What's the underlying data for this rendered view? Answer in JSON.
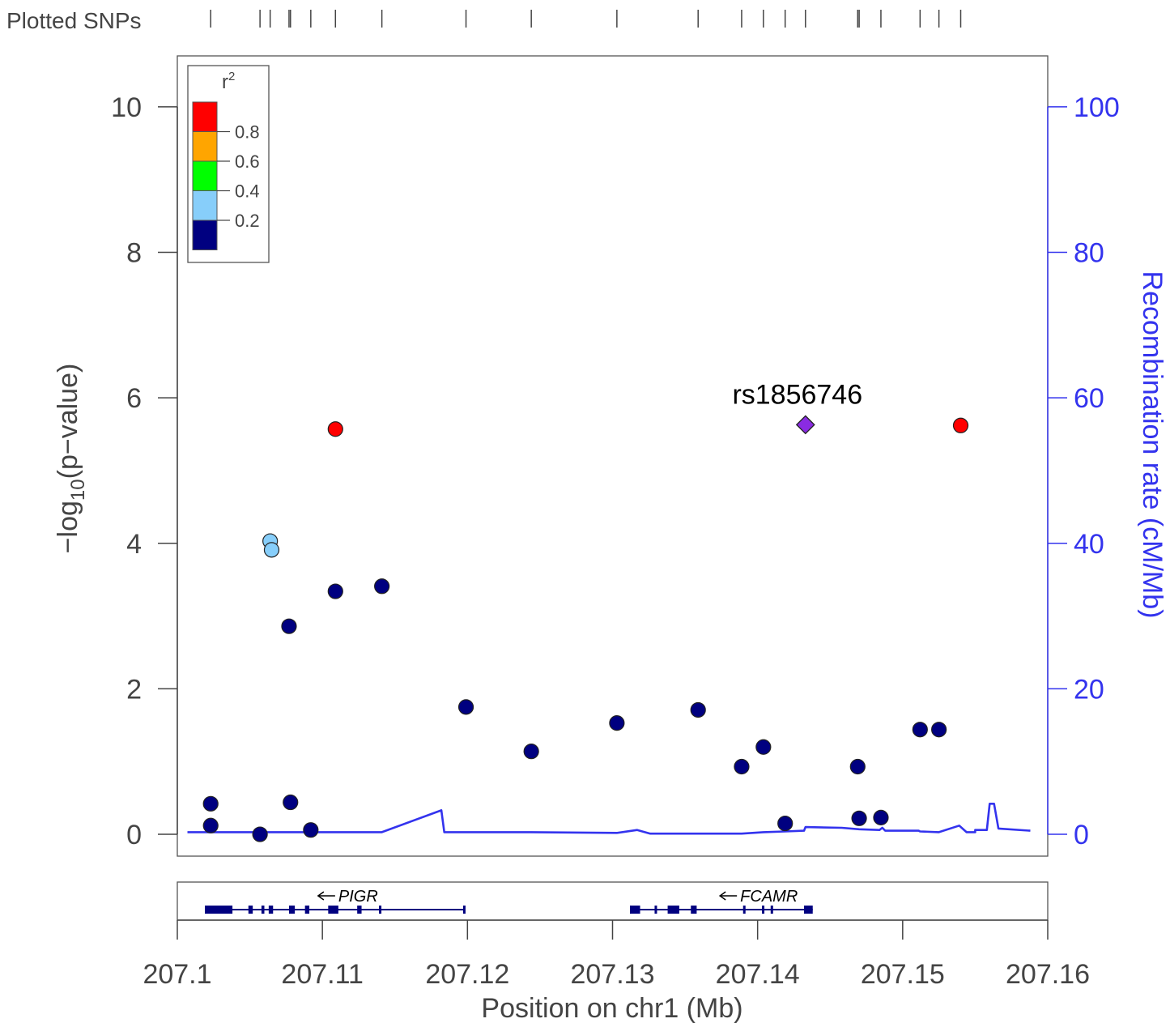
{
  "plotted_snps_label": "Plotted SNPs",
  "chart_data": {
    "type": "scatter",
    "xlabel": "Position on chr1 (Mb)",
    "ylabel_left": {
      "pre": "−log",
      "sub": "10",
      "post": "(p−value)"
    },
    "ylabel_right": "Recombination rate (cM/Mb)",
    "xlim": [
      207.1,
      207.16
    ],
    "ylim": [
      -0.3,
      10.7
    ],
    "x_ticks": [
      207.1,
      207.11,
      207.12,
      207.13,
      207.14,
      207.15,
      207.16
    ],
    "x_tick_labels": [
      "207.1",
      "207.11",
      "207.12",
      "207.13",
      "207.14",
      "207.15",
      "207.16"
    ],
    "y_ticks": [
      0,
      2,
      4,
      6,
      8,
      10
    ],
    "y_tick_labels": [
      "0",
      "2",
      "4",
      "6",
      "8",
      "10"
    ],
    "y2_ticks": [
      0,
      20,
      40,
      60,
      80,
      100
    ],
    "y2_tick_labels": [
      "0",
      "20",
      "40",
      "60",
      "80",
      "100"
    ],
    "y2_lim": [
      -3,
      107
    ],
    "legend": {
      "title": "r",
      "title_sup": "2",
      "placement": "top-left",
      "colors": [
        "#FF0000",
        "#FFA500",
        "#00FF00",
        "#87CEFA",
        "#000080"
      ],
      "labels": [
        "0.8",
        "0.6",
        "0.4",
        "0.2"
      ]
    },
    "colors": {
      "navy": "#000080",
      "lightblue": "#87CEFA",
      "red": "#FF0000",
      "lead": "#8A2BE2",
      "recomb": "#3333EE",
      "axis_text": "#444444"
    },
    "lead_snp": {
      "label": "rs1856746",
      "x": 207.1433,
      "y": 5.63
    },
    "points": [
      {
        "x": 207.1023,
        "y": 0.42,
        "r2": "navy"
      },
      {
        "x": 207.1023,
        "y": 0.12,
        "r2": "navy"
      },
      {
        "x": 207.1057,
        "y": 0.0,
        "r2": "navy"
      },
      {
        "x": 207.1064,
        "y": 4.03,
        "r2": "lightblue"
      },
      {
        "x": 207.1065,
        "y": 3.91,
        "r2": "lightblue"
      },
      {
        "x": 207.1077,
        "y": 2.86,
        "r2": "navy"
      },
      {
        "x": 207.1078,
        "y": 0.44,
        "r2": "navy"
      },
      {
        "x": 207.1092,
        "y": 0.06,
        "r2": "navy"
      },
      {
        "x": 207.1109,
        "y": 3.34,
        "r2": "navy"
      },
      {
        "x": 207.1109,
        "y": 5.57,
        "r2": "red"
      },
      {
        "x": 207.1141,
        "y": 3.41,
        "r2": "navy"
      },
      {
        "x": 207.1199,
        "y": 1.75,
        "r2": "navy"
      },
      {
        "x": 207.1244,
        "y": 1.14,
        "r2": "navy"
      },
      {
        "x": 207.1303,
        "y": 1.53,
        "r2": "navy"
      },
      {
        "x": 207.1359,
        "y": 1.71,
        "r2": "navy"
      },
      {
        "x": 207.1389,
        "y": 0.93,
        "r2": "navy"
      },
      {
        "x": 207.1404,
        "y": 1.2,
        "r2": "navy"
      },
      {
        "x": 207.1419,
        "y": 0.15,
        "r2": "navy"
      },
      {
        "x": 207.1469,
        "y": 0.93,
        "r2": "navy"
      },
      {
        "x": 207.147,
        "y": 0.22,
        "r2": "navy"
      },
      {
        "x": 207.1485,
        "y": 0.23,
        "r2": "navy"
      },
      {
        "x": 207.1512,
        "y": 1.44,
        "r2": "navy"
      },
      {
        "x": 207.1525,
        "y": 1.44,
        "r2": "navy"
      },
      {
        "x": 207.154,
        "y": 5.62,
        "r2": "red"
      }
    ],
    "snp_ticks": [
      207.1023,
      207.1057,
      207.1064,
      207.1077,
      207.1078,
      207.1092,
      207.1109,
      207.1141,
      207.1199,
      207.1244,
      207.1303,
      207.1359,
      207.1389,
      207.1404,
      207.1419,
      207.1433,
      207.1469,
      207.147,
      207.1485,
      207.1512,
      207.1525,
      207.154
    ],
    "recombination": [
      [
        207.1007,
        0.3
      ],
      [
        207.1141,
        0.3
      ],
      [
        207.1182,
        3.3
      ],
      [
        207.1184,
        0.3
      ],
      [
        207.1244,
        0.3
      ],
      [
        207.1303,
        0.2
      ],
      [
        207.1317,
        0.6
      ],
      [
        207.1326,
        0.1
      ],
      [
        207.1389,
        0.1
      ],
      [
        207.1404,
        0.3
      ],
      [
        207.1419,
        0.4
      ],
      [
        207.1432,
        0.5
      ],
      [
        207.1433,
        1.0
      ],
      [
        207.1458,
        0.9
      ],
      [
        207.147,
        0.7
      ],
      [
        207.1484,
        0.6
      ],
      [
        207.1486,
        0.9
      ],
      [
        207.1488,
        0.5
      ],
      [
        207.1511,
        0.5
      ],
      [
        207.1512,
        0.4
      ],
      [
        207.1525,
        0.3
      ],
      [
        207.1539,
        1.2
      ],
      [
        207.1544,
        0.3
      ],
      [
        207.155,
        0.3
      ],
      [
        207.155,
        0.6
      ],
      [
        207.1558,
        0.6
      ],
      [
        207.156,
        4.2
      ],
      [
        207.1563,
        4.2
      ],
      [
        207.1566,
        0.8
      ],
      [
        207.1588,
        0.5
      ]
    ],
    "genes": [
      {
        "name": "PIGR",
        "strand": "-",
        "start": 207.1019,
        "end": 207.1198,
        "label_x": 207.1111,
        "exons": [
          [
            207.1019,
            207.1038
          ],
          [
            207.1049,
            207.1052
          ],
          [
            207.1058,
            207.106
          ],
          [
            207.1063,
            207.1066
          ],
          [
            207.1077,
            207.1081
          ],
          [
            207.1088,
            207.1091
          ],
          [
            207.1104,
            207.1111
          ],
          [
            207.1124,
            207.1127
          ],
          [
            207.1139,
            207.114
          ],
          [
            207.1197,
            207.1198
          ]
        ]
      },
      {
        "name": "FCAMR",
        "strand": "-",
        "start": 207.1312,
        "end": 207.1438,
        "label_x": 207.1388,
        "exons": [
          [
            207.1312,
            207.1319
          ],
          [
            207.1329,
            207.133
          ],
          [
            207.1338,
            207.1346
          ],
          [
            207.1354,
            207.1358
          ],
          [
            207.139,
            207.1391
          ],
          [
            207.1403,
            207.1404
          ],
          [
            207.1409,
            207.141
          ],
          [
            207.1432,
            207.1438
          ]
        ]
      }
    ]
  }
}
